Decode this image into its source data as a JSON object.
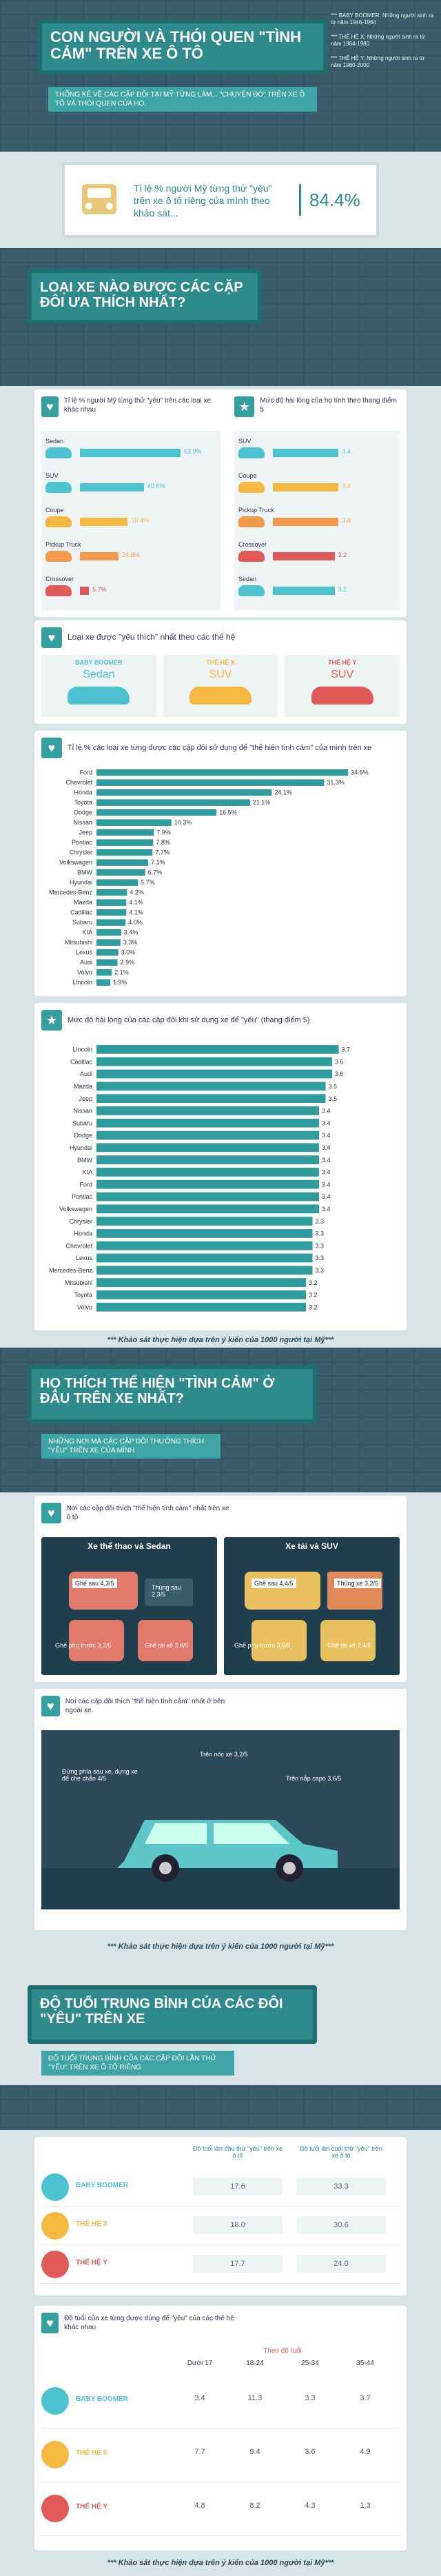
{
  "header": {
    "title": "CON NGƯỜI VÀ THÓI QUEN \"TÌNH CẢM\" TRÊN XE Ô TÔ",
    "subtitle": "THỐNG KÊ VỀ CÁC CẶP ĐÔI TẠI MỸ TỪNG LÀM... \"CHUYỆN ĐÓ\" TRÊN XE Ô TÔ VÀ THÓI QUEN CỦA HỌ.",
    "legend": [
      "*** BABY BOOMER: Những người sinh ra từ năm 1946-1964",
      "*** THẾ HỆ X: Những người sinh ra từ năm 1964-1980",
      "*** THẾ HỆ Y: Những người sinh ra từ năm 1980-2000"
    ]
  },
  "stat1": {
    "text": "Tỉ lệ % người Mỹ từng thử \"yêu\" trên xe ô tô riêng của mình theo khảo sát...",
    "value": "84.4%"
  },
  "section1": {
    "title": "LOẠI XE NÀO ĐƯỢC CÁC CẶP ĐÔI ƯA THÍCH NHẤT?"
  },
  "carTypes": {
    "left_title": "Tỉ lệ % người Mỹ từng thử \"yêu\" trên các loại xe khác nhau",
    "right_title": "Mức độ hài lòng của họ tính theo thang điểm 5",
    "left": [
      {
        "name": "Sedan",
        "value": 63.9,
        "label": "63.9%",
        "color": "#4cc3cf"
      },
      {
        "name": "SUV",
        "value": 40.6,
        "label": "40.6%",
        "color": "#4cc3cf"
      },
      {
        "name": "Coupe",
        "value": 30.4,
        "label": "30.4%",
        "color": "#f5b942"
      },
      {
        "name": "Pickup Truck",
        "value": 24.6,
        "label": "24.6%",
        "color": "#f29a4b"
      },
      {
        "name": "Crossover",
        "value": 5.7,
        "label": "5.7%",
        "color": "#e05a5a"
      }
    ],
    "right": [
      {
        "name": "SUV",
        "value": 3.4,
        "label": "3.4",
        "color": "#4cc3cf"
      },
      {
        "name": "Coupe",
        "value": 3.4,
        "label": "3.4",
        "color": "#f5b942"
      },
      {
        "name": "Pickup Truck",
        "value": 3.4,
        "label": "3.4",
        "color": "#f29a4b"
      },
      {
        "name": "Crossover",
        "value": 3.2,
        "label": "3.2",
        "color": "#e05a5a"
      },
      {
        "name": "Sedan",
        "value": 3.2,
        "label": "3.2",
        "color": "#4cc3cf"
      }
    ]
  },
  "favorite": {
    "title": "Loại xe được \"yêu thích\" nhất theo các thế hệ",
    "items": [
      {
        "gen": "BABY BOOMER",
        "car": "Sedan",
        "color": "#4cc3cf"
      },
      {
        "gen": "THẾ HỆ X",
        "car": "SUV",
        "color": "#f5b942"
      },
      {
        "gen": "THẾ HỆ Y",
        "car": "SUV",
        "color": "#e05a5a"
      }
    ]
  },
  "chart_data": [
    {
      "type": "bar",
      "title": "Tỉ lệ % các loại xe từng được các cặp đôi sử dụng để \"thể hiện tình cảm\" của mình trên xe",
      "categories": [
        "Ford",
        "Chevrolet",
        "Honda",
        "Toyota",
        "Dodge",
        "Nissan",
        "Jeep",
        "Pontiac",
        "Chrysler",
        "Volkswagen",
        "BMW",
        "Hyundai",
        "Mercedes-Benz",
        "Mazda",
        "Cadillac",
        "Subaru",
        "KIA",
        "Mitsubishi",
        "Lexus",
        "Audi",
        "Volvo",
        "Lincoln"
      ],
      "values": [
        34.6,
        31.3,
        24.1,
        21.1,
        16.5,
        10.3,
        7.9,
        7.8,
        7.7,
        7.1,
        6.7,
        5.7,
        4.2,
        4.1,
        4.1,
        4.0,
        3.4,
        3.3,
        3.0,
        2.9,
        2.1,
        1.9
      ],
      "labels": [
        "34.6%",
        "31.3%",
        "24.1%",
        "21.1%",
        "16.5%",
        "10.3%",
        "7.9%",
        "7.8%",
        "7.7%",
        "7.1%",
        "6.7%",
        "5.7%",
        "4.2%",
        "4.1%",
        "4.1%",
        "4.0%",
        "3.4%",
        "3.3%",
        "3.0%",
        "2.9%",
        "2.1%",
        "1.9%"
      ],
      "xlim": [
        0,
        36
      ]
    },
    {
      "type": "bar",
      "title": "Mức độ hài lòng của các cặp đôi khi sử dụng xe để \"yêu\" (thang điểm 5)",
      "categories": [
        "Lincoln",
        "Cadillac",
        "Audi",
        "Mazda",
        "Jeep",
        "Nissan",
        "Subaru",
        "Dodge",
        "Hyundai",
        "BMW",
        "KIA",
        "Ford",
        "Pontiac",
        "Volkswagen",
        "Chrysler",
        "Honda",
        "Chevrolet",
        "Lexus",
        "Mercedes-Benz",
        "Mitsubishi",
        "Toyota",
        "Volvo"
      ],
      "values": [
        3.7,
        3.6,
        3.6,
        3.5,
        3.5,
        3.4,
        3.4,
        3.4,
        3.4,
        3.4,
        3.4,
        3.4,
        3.4,
        3.4,
        3.3,
        3.3,
        3.3,
        3.3,
        3.3,
        3.2,
        3.2,
        3.2
      ],
      "labels": [
        "3.7",
        "3.6",
        "3.6",
        "3.5",
        "3.5",
        "3.4",
        "3.4",
        "3.4",
        "3.4",
        "3.4",
        "3.4",
        "3.4",
        "3.4",
        "3.4",
        "3.3",
        "3.3",
        "3.3",
        "3.3",
        "3.3",
        "3.2",
        "3.2",
        "3.2"
      ],
      "xlim": [
        0,
        4
      ]
    },
    {
      "type": "table",
      "title": "Độ tuổi của xe từng được dùng để \"yêu\" của các thế hệ khác nhau",
      "columns": [
        "Dưới 17",
        "18-24",
        "25-34",
        "35-44"
      ],
      "rows": [
        {
          "gen": "BABY BOOMER",
          "values": [
            "3.4",
            "11.3",
            "3.3",
            "3.7"
          ]
        },
        {
          "gen": "THẾ HỆ X",
          "values": [
            "7.7",
            "9.4",
            "3.6",
            "4.9"
          ]
        },
        {
          "gen": "THẾ HỆ Y",
          "values": [
            "4.8",
            "8.2",
            "4.3",
            "1.3"
          ]
        }
      ]
    }
  ],
  "survey_note": "*** Khảo sát thực hiện dựa trên ý kiến của 1000 người tại Mỹ***",
  "section2": {
    "title": "HỌ THÍCH THỂ HIỆN \"TÌNH CẢM\" Ở ĐÂU TRÊN XE NHẤT?",
    "subtitle": "NHỮNG NƠI MÀ CÁC CẶP ĐÔI THƯỜNG THÍCH \"YÊU\" TRÊN XE CỦA MÌNH"
  },
  "places": {
    "title": "Nơi các cặp đôi thích \"thể hiện tình cảm\" nhất trên xe ô tô",
    "sedan": {
      "title": "Xe thể thao và Sedan",
      "back": "Ghế sau 4,3/5",
      "trunk": "Thùng sau 2,3/5",
      "front": "Ghế phụ trước 3,2/5",
      "driver": "Ghế tài xế 2,6/5"
    },
    "suv": {
      "title": "Xe tải và SUV",
      "back": "Ghế sau 4,4/5",
      "trunk": "Thùng xe 3,2/5",
      "front": "Ghế phụ trước 3,6/5",
      "driver": "Ghế tài xế 2,4/5"
    }
  },
  "outside": {
    "title": "Nơi các cặp đôi thích \"thể hiện tình cảm\" nhất ở bên ngoài xe.",
    "roof": "Trên nóc xe 3,2/5",
    "hood": "Trên nắp capo 3,6/5",
    "side": "Đứng phía sau xe, dựng xe để che chắn 4/5"
  },
  "section3": {
    "title": "ĐỘ TUỔI TRUNG BÌNH CỦA CÁC ĐÔI \"YÊU\" TRÊN XE",
    "subtitle": "ĐỘ TUỔI TRUNG BÌNH CỦA CÁC CẶP ĐÔI LẦN THỬ \"YÊU\" TRÊN XE Ô TÔ RIÊNG"
  },
  "ageTable": {
    "col1": "Độ tuổi lần đầu thử \"yêu\" trên xe ô tô",
    "col2": "Độ tuổi lần cuối thử \"yêu\" trên xe ô tô",
    "rows": [
      {
        "gen": "BABY BOOMER",
        "first": "17.6",
        "last": "33.3"
      },
      {
        "gen": "THẾ HỆ X",
        "first": "18.0",
        "last": "30.6"
      },
      {
        "gen": "THẾ HỆ Y",
        "first": "17.7",
        "last": "24.0"
      }
    ]
  },
  "carAge": {
    "title": "Độ tuổi của xe từng được dùng để \"yêu\" của các thế hệ khác nhau",
    "header": "Theo độ tuổi"
  }
}
